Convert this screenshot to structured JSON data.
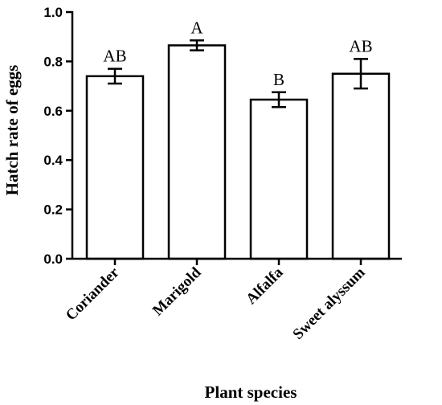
{
  "chart_data": {
    "type": "bar",
    "categories": [
      "Coriander",
      "Marigold",
      "Alfalfa",
      "Sweet alyssum"
    ],
    "values": [
      0.74,
      0.865,
      0.645,
      0.75
    ],
    "errors": [
      0.03,
      0.02,
      0.03,
      0.06
    ],
    "significance_labels": [
      "AB",
      "A",
      "B",
      "AB"
    ],
    "xlabel": "Plant species",
    "ylabel": "Hatch rate of eggs",
    "ylim": [
      0,
      1.0
    ],
    "yticks": [
      "0.0",
      "0.2",
      "0.4",
      "0.6",
      "0.8",
      "1.0"
    ],
    "ytick_values": [
      0,
      0.2,
      0.4,
      0.6,
      0.8,
      1.0
    ],
    "bar_fill": "#ffffff",
    "bar_stroke": "#000000",
    "grid": false
  }
}
